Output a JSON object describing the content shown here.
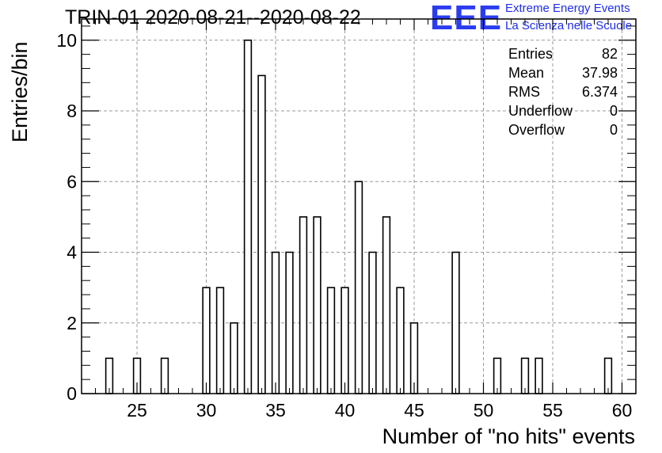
{
  "header": {
    "title": "TRIN-01 2020-08-21--2020-08-22"
  },
  "logo": {
    "mark": "EEE",
    "line1": "Extreme Energy Events",
    "line2": "La Scienza nelle Scuole",
    "color": "#2b3cf0"
  },
  "stats": [
    {
      "key": "Entries",
      "value": "82"
    },
    {
      "key": "Mean",
      "value": "37.98"
    },
    {
      "key": "RMS",
      "value": "6.374"
    },
    {
      "key": "Underflow",
      "value": "0"
    },
    {
      "key": "Overflow",
      "value": "0"
    }
  ],
  "chart_data": {
    "type": "bar",
    "title": "TRIN-01 2020-08-21--2020-08-22",
    "xlabel": "Number of \"no hits\" events",
    "ylabel": "Entries/bin",
    "xlim": [
      21,
      61
    ],
    "ylim": [
      0,
      10.6
    ],
    "bin_width": 0.5,
    "grid": true,
    "xticks": [
      25,
      30,
      35,
      40,
      45,
      50,
      55,
      60
    ],
    "yticks": [
      0,
      2,
      4,
      6,
      8,
      10
    ],
    "bins": [
      {
        "x": 23,
        "value": 1
      },
      {
        "x": 25,
        "value": 1
      },
      {
        "x": 27,
        "value": 1
      },
      {
        "x": 30,
        "value": 3
      },
      {
        "x": 31,
        "value": 3
      },
      {
        "x": 32,
        "value": 2
      },
      {
        "x": 33,
        "value": 10
      },
      {
        "x": 34,
        "value": 9
      },
      {
        "x": 35,
        "value": 4
      },
      {
        "x": 36,
        "value": 4
      },
      {
        "x": 37,
        "value": 5
      },
      {
        "x": 38,
        "value": 5
      },
      {
        "x": 39,
        "value": 3
      },
      {
        "x": 40,
        "value": 3
      },
      {
        "x": 41,
        "value": 6
      },
      {
        "x": 42,
        "value": 4
      },
      {
        "x": 43,
        "value": 5
      },
      {
        "x": 44,
        "value": 3
      },
      {
        "x": 45,
        "value": 2
      },
      {
        "x": 48,
        "value": 4
      },
      {
        "x": 51,
        "value": 1
      },
      {
        "x": 53,
        "value": 1
      },
      {
        "x": 54,
        "value": 1
      },
      {
        "x": 59,
        "value": 1
      }
    ]
  }
}
